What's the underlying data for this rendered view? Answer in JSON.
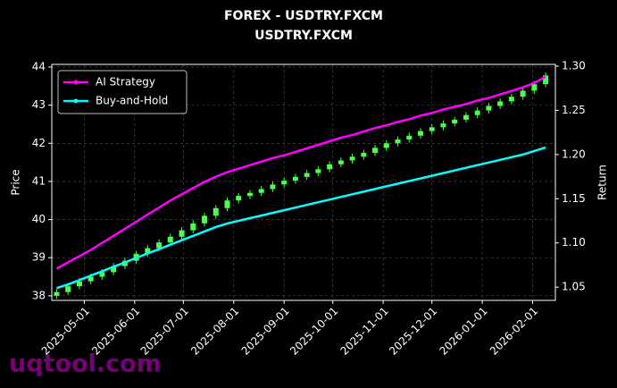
{
  "chart_data": {
    "type": "candlestick",
    "title": "FOREX - USDTRY.FXCM",
    "subtitle": "USDTRY.FXCM",
    "ylabel": "Price",
    "y2label": "Return",
    "watermark": "uqtool.com",
    "x": [
      "2025-04-14",
      "2025-04-21",
      "2025-04-28",
      "2025-05-05",
      "2025-05-12",
      "2025-05-19",
      "2025-05-26",
      "2025-06-02",
      "2025-06-09",
      "2025-06-16",
      "2025-06-23",
      "2025-06-30",
      "2025-07-07",
      "2025-07-14",
      "2025-07-21",
      "2025-07-28",
      "2025-08-04",
      "2025-08-11",
      "2025-08-18",
      "2025-08-25",
      "2025-09-01",
      "2025-09-08",
      "2025-09-15",
      "2025-09-22",
      "2025-09-29",
      "2025-10-06",
      "2025-10-13",
      "2025-10-20",
      "2025-10-27",
      "2025-11-03",
      "2025-11-10",
      "2025-11-17",
      "2025-11-24",
      "2025-12-01",
      "2025-12-08",
      "2025-12-15",
      "2025-12-22",
      "2025-12-29",
      "2026-01-05",
      "2026-01-12",
      "2026-01-19",
      "2026-01-26",
      "2026-02-02",
      "2026-02-09"
    ],
    "open": [
      38.0,
      38.1,
      38.25,
      38.38,
      38.5,
      38.62,
      38.78,
      38.92,
      39.1,
      39.25,
      39.4,
      39.55,
      39.72,
      39.9,
      40.1,
      40.3,
      40.5,
      40.62,
      40.7,
      40.8,
      40.92,
      41.02,
      41.12,
      41.22,
      41.32,
      41.45,
      41.55,
      41.65,
      41.75,
      41.88,
      42.0,
      42.1,
      42.2,
      42.32,
      42.42,
      42.52,
      42.62,
      42.74,
      42.86,
      42.98,
      43.1,
      43.22,
      43.38,
      43.55
    ],
    "high": [
      38.18,
      38.33,
      38.46,
      38.58,
      38.7,
      38.86,
      39.0,
      39.18,
      39.33,
      39.48,
      39.63,
      39.8,
      39.98,
      40.18,
      40.38,
      40.58,
      40.7,
      40.78,
      40.88,
      41.0,
      41.1,
      41.2,
      41.3,
      41.4,
      41.53,
      41.63,
      41.73,
      41.83,
      41.96,
      42.08,
      42.18,
      42.28,
      42.4,
      42.5,
      42.6,
      42.7,
      42.82,
      42.94,
      43.06,
      43.18,
      43.3,
      43.46,
      43.63,
      43.86
    ],
    "low": [
      37.92,
      38.02,
      38.17,
      38.3,
      38.42,
      38.54,
      38.7,
      38.84,
      39.02,
      39.17,
      39.32,
      39.47,
      39.64,
      39.82,
      40.02,
      40.22,
      40.42,
      40.54,
      40.62,
      40.72,
      40.84,
      40.94,
      41.04,
      41.14,
      41.24,
      41.37,
      41.47,
      41.57,
      41.67,
      41.8,
      41.92,
      42.02,
      42.12,
      42.24,
      42.34,
      42.44,
      42.54,
      42.66,
      42.78,
      42.9,
      43.02,
      43.14,
      43.3,
      43.47
    ],
    "close": [
      38.1,
      38.25,
      38.38,
      38.5,
      38.62,
      38.78,
      38.92,
      39.1,
      39.25,
      39.4,
      39.55,
      39.72,
      39.9,
      40.1,
      40.3,
      40.5,
      40.62,
      40.7,
      40.8,
      40.92,
      41.02,
      41.12,
      41.22,
      41.32,
      41.45,
      41.55,
      41.65,
      41.75,
      41.88,
      42.0,
      42.1,
      42.2,
      42.32,
      42.42,
      42.52,
      42.62,
      42.74,
      42.86,
      42.98,
      43.1,
      43.22,
      43.38,
      43.55,
      43.78
    ],
    "up_color": "#4cff4c",
    "down_color": "#ff4c4c",
    "series": [
      {
        "name": "AI Strategy",
        "color": "#ff00ff",
        "axis": "y2",
        "values": [
          1.071,
          1.078,
          1.085,
          1.092,
          1.1,
          1.108,
          1.116,
          1.124,
          1.132,
          1.14,
          1.148,
          1.155,
          1.162,
          1.169,
          1.175,
          1.18,
          1.184,
          1.188,
          1.192,
          1.196,
          1.199,
          1.203,
          1.207,
          1.211,
          1.215,
          1.219,
          1.222,
          1.226,
          1.23,
          1.233,
          1.237,
          1.24,
          1.244,
          1.247,
          1.251,
          1.254,
          1.257,
          1.261,
          1.264,
          1.268,
          1.272,
          1.276,
          1.281,
          1.288
        ]
      },
      {
        "name": "Buy-and-Hold",
        "color": "#00ffff",
        "axis": "y2",
        "values": [
          1.049,
          1.053,
          1.058,
          1.063,
          1.068,
          1.073,
          1.078,
          1.083,
          1.088,
          1.093,
          1.098,
          1.103,
          1.108,
          1.113,
          1.118,
          1.122,
          1.125,
          1.128,
          1.131,
          1.134,
          1.137,
          1.14,
          1.143,
          1.146,
          1.149,
          1.152,
          1.155,
          1.158,
          1.161,
          1.164,
          1.167,
          1.17,
          1.173,
          1.176,
          1.179,
          1.182,
          1.185,
          1.188,
          1.191,
          1.194,
          1.197,
          1.2,
          1.204,
          1.208
        ]
      }
    ],
    "xlim": [
      "2025-04-11",
      "2026-02-15"
    ],
    "xticks": [
      "2025-05-01",
      "2025-06-01",
      "2025-07-01",
      "2025-08-01",
      "2025-09-01",
      "2025-10-01",
      "2025-11-01",
      "2025-12-01",
      "2026-01-01",
      "2026-02-01"
    ],
    "ylim": [
      37.88,
      44.07
    ],
    "yticks": [
      38,
      39,
      40,
      41,
      42,
      43,
      44
    ],
    "y2lim": [
      1.035,
      1.302
    ],
    "y2ticks": [
      1.05,
      {
        "value": 1.1,
        "label": "1.10"
      },
      1.15,
      {
        "value": 1.2,
        "label": "1.20"
      },
      1.25,
      {
        "value": 1.3,
        "label": "1.30"
      }
    ],
    "grid": true,
    "legend": "upper left"
  }
}
